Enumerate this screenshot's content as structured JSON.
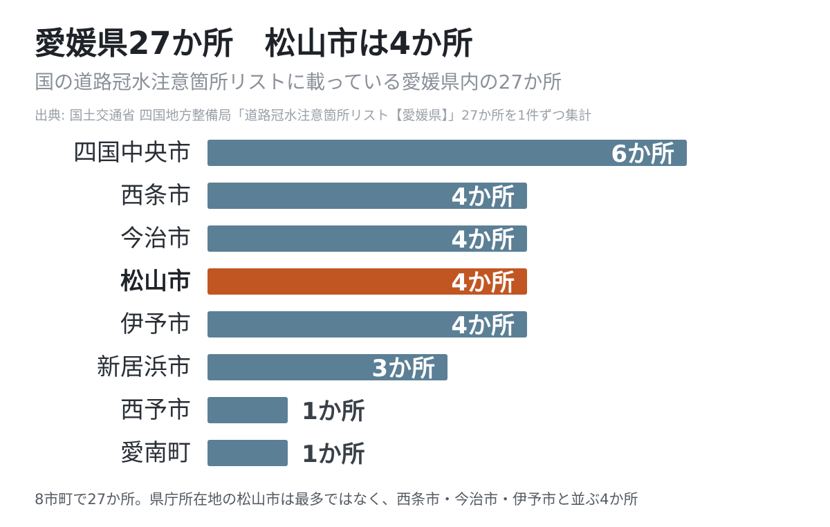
{
  "header": {
    "title": "愛媛県27か所　松山市は4か所",
    "subtitle": "国の道路冠水注意箇所リストに載っている愛媛県内の27か所",
    "source": "出典: 国土交通省 四国地方整備局「道路冠水注意箇所リスト【愛媛県】」27か所を1件ずつ集計"
  },
  "footnote": "8市町で27か所。県庁所在地の松山市は最多ではなく、西条市・今治市・伊予市と並ぶ4か所",
  "colors": {
    "bar": "#5b7f95",
    "highlight": "#c15622",
    "label_inside": "#ffffff",
    "label_outside": "#3a4048"
  },
  "chart_data": {
    "type": "bar",
    "orientation": "horizontal",
    "categories": [
      "四国中央市",
      "西条市",
      "今治市",
      "松山市",
      "伊予市",
      "新居浜市",
      "西予市",
      "愛南町"
    ],
    "values": [
      6,
      4,
      4,
      4,
      4,
      3,
      1,
      1
    ],
    "value_labels": [
      "6か所",
      "4か所",
      "4か所",
      "4か所",
      "4か所",
      "3か所",
      "1か所",
      "1か所"
    ],
    "highlight_category": "松山市",
    "xlim": [
      0,
      6
    ],
    "grid": false,
    "legend": "none"
  }
}
